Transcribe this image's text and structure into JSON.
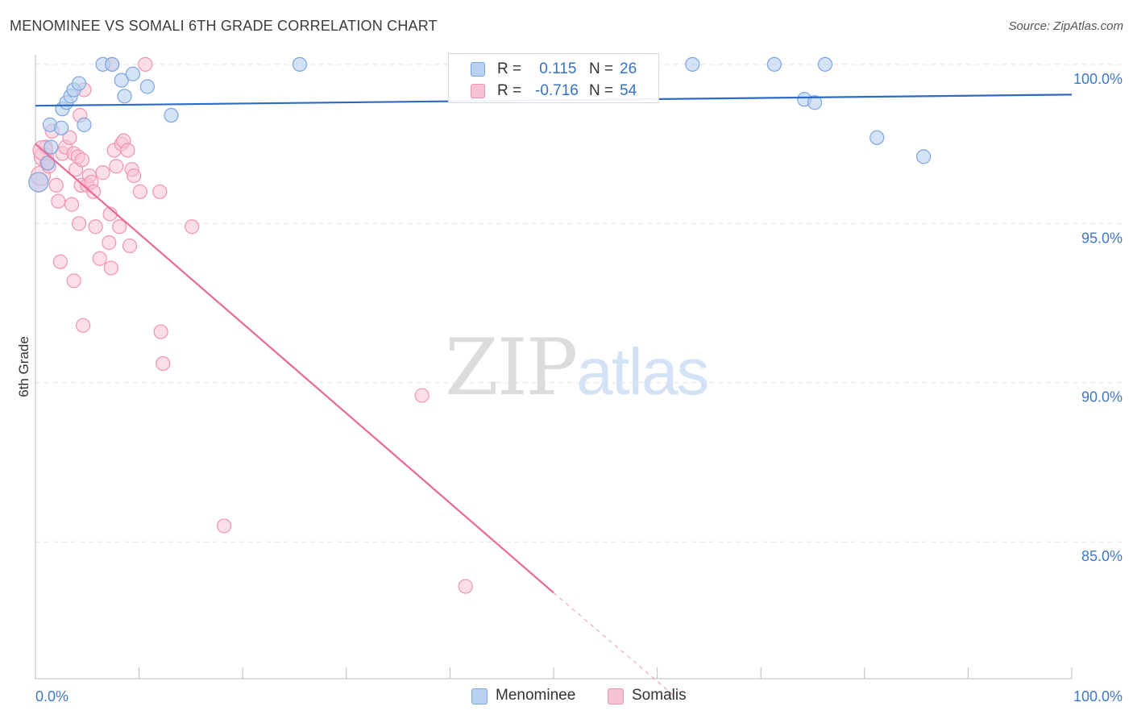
{
  "header": {
    "title": "MENOMINEE VS SOMALI 6TH GRADE CORRELATION CHART",
    "source": "Source: ZipAtlas.com"
  },
  "watermark": {
    "part1": "ZIP",
    "part2": "atlas"
  },
  "colors": {
    "blue_fill": "#b9d1f2",
    "blue_stroke": "#7ba6e0",
    "blue_line": "#2c6bc4",
    "pink_fill": "#f7c2d3",
    "pink_stroke": "#ef93b2",
    "pink_line": "#e8699a",
    "axis_text": "#3f78c8",
    "grid": "#e3e3e3"
  },
  "legend_top": {
    "rows": [
      {
        "label": "R =",
        "r": " 0.115",
        "n_label": "N =",
        "n": "26"
      },
      {
        "label": "R =",
        "r": "-0.716",
        "n_label": "N =",
        "n": "54"
      }
    ]
  },
  "legend_bottom": {
    "items": [
      "Menominee",
      "Somalis"
    ]
  },
  "chart_data": {
    "type": "scatter",
    "title": "MENOMINEE VS SOMALI 6TH GRADE CORRELATION CHART",
    "xlabel": "",
    "ylabel": "6th Grade",
    "xlim": [
      0,
      100
    ],
    "ylim": [
      80.7,
      100.3
    ],
    "x_tick_labels": [
      "0.0%",
      "100.0%"
    ],
    "y_ticks": [
      100,
      95,
      90,
      85
    ],
    "y_tick_labels": [
      "100.0%",
      "95.0%",
      "90.0%",
      "85.0%"
    ],
    "grid": true,
    "series": [
      {
        "name": "Menominee",
        "r": 0.115,
        "n": 26,
        "trend": {
          "x": [
            0,
            100
          ],
          "y": [
            98.7,
            99.05
          ]
        },
        "points": [
          [
            1.5,
            97.4
          ],
          [
            1.2,
            96.9
          ],
          [
            1.4,
            98.1
          ],
          [
            2.5,
            98.0
          ],
          [
            2.6,
            98.6
          ],
          [
            3.0,
            98.8
          ],
          [
            3.4,
            99.0
          ],
          [
            3.7,
            99.2
          ],
          [
            4.2,
            99.4
          ],
          [
            4.7,
            98.1
          ],
          [
            6.5,
            100.0
          ],
          [
            7.4,
            100.0
          ],
          [
            8.3,
            99.5
          ],
          [
            8.6,
            99.0
          ],
          [
            9.4,
            99.7
          ],
          [
            10.8,
            99.3
          ],
          [
            13.1,
            98.4
          ],
          [
            25.5,
            100.0
          ],
          [
            63.4,
            100.0
          ],
          [
            71.3,
            100.0
          ],
          [
            74.2,
            98.9
          ],
          [
            75.2,
            98.8
          ],
          [
            76.2,
            100.0
          ],
          [
            81.2,
            97.7
          ],
          [
            85.7,
            97.1
          ],
          [
            0.3,
            96.3
          ]
        ]
      },
      {
        "name": "Somalis",
        "r": -0.716,
        "n": 54,
        "trend": {
          "x": [
            0,
            50
          ],
          "y": [
            97.5,
            83.4
          ]
        },
        "trend_extension": {
          "x": [
            50,
            61.5
          ],
          "y": [
            83.4,
            80.2
          ]
        },
        "points": [
          [
            0.3,
            96.3
          ],
          [
            0.5,
            96.5
          ],
          [
            0.8,
            97.1
          ],
          [
            1.0,
            97.4
          ],
          [
            1.3,
            96.8
          ],
          [
            1.6,
            97.9
          ],
          [
            2.0,
            96.2
          ],
          [
            2.2,
            95.7
          ],
          [
            2.4,
            93.8
          ],
          [
            2.6,
            97.2
          ],
          [
            2.9,
            97.4
          ],
          [
            3.3,
            97.7
          ],
          [
            3.5,
            95.6
          ],
          [
            3.7,
            97.2
          ],
          [
            3.9,
            96.7
          ],
          [
            4.1,
            97.1
          ],
          [
            3.7,
            93.2
          ],
          [
            4.3,
            98.4
          ],
          [
            4.7,
            99.2
          ],
          [
            4.5,
            97.0
          ],
          [
            4.4,
            96.2
          ],
          [
            4.2,
            95.0
          ],
          [
            5.0,
            96.2
          ],
          [
            5.2,
            96.5
          ],
          [
            5.4,
            96.3
          ],
          [
            5.6,
            96.0
          ],
          [
            5.8,
            94.9
          ],
          [
            6.2,
            93.9
          ],
          [
            6.5,
            96.6
          ],
          [
            7.1,
            94.4
          ],
          [
            7.3,
            93.6
          ],
          [
            7.2,
            95.3
          ],
          [
            7.6,
            97.3
          ],
          [
            7.8,
            96.8
          ],
          [
            8.1,
            94.9
          ],
          [
            8.3,
            97.5
          ],
          [
            8.5,
            97.6
          ],
          [
            8.9,
            97.3
          ],
          [
            9.1,
            94.3
          ],
          [
            9.3,
            96.7
          ],
          [
            9.5,
            96.5
          ],
          [
            10.1,
            96.0
          ],
          [
            10.6,
            100.0
          ],
          [
            7.4,
            100.0
          ],
          [
            4.6,
            91.8
          ],
          [
            12.1,
            91.6
          ],
          [
            12.3,
            90.6
          ],
          [
            12.0,
            96.0
          ],
          [
            15.1,
            94.9
          ],
          [
            18.2,
            85.5
          ],
          [
            37.3,
            89.6
          ],
          [
            41.5,
            83.6
          ],
          [
            1.1,
            96.9
          ],
          [
            0.7,
            97.3
          ]
        ]
      }
    ]
  }
}
